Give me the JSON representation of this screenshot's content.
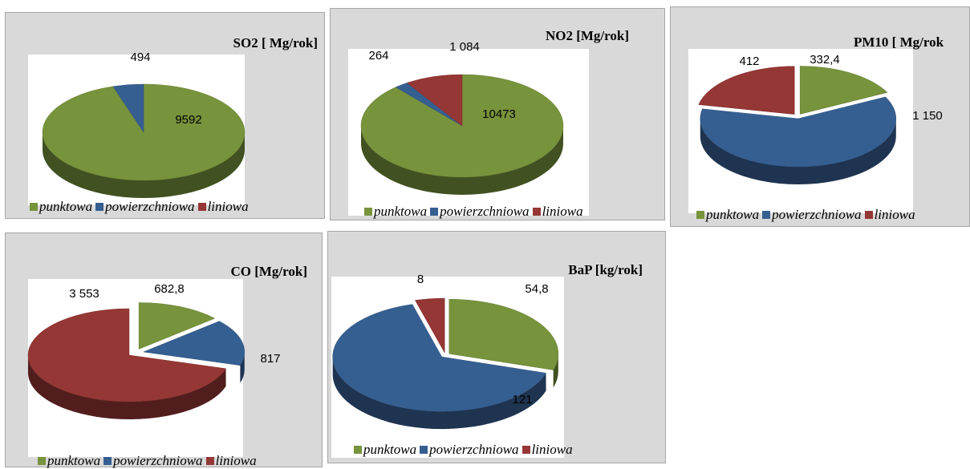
{
  "colors": {
    "punktowa": "#77933c",
    "powierzchniowa": "#365f91",
    "liniowa": "#953735"
  },
  "chart_data": [
    {
      "type": "pie",
      "title": "SO2 [ Mg/rok]",
      "categories": [
        "punktowa",
        "powierzchniowa",
        "liniowa"
      ],
      "values": [
        9592,
        494,
        0
      ],
      "labels": [
        "9592",
        "494",
        ""
      ]
    },
    {
      "type": "pie",
      "title": "NO2 [Mg/rok]",
      "categories": [
        "punktowa",
        "powierzchniowa",
        "liniowa"
      ],
      "values": [
        10473,
        264,
        1084
      ],
      "labels": [
        "10473",
        "264",
        "1 084"
      ]
    },
    {
      "type": "pie",
      "title": "PM10 [ Mg/rok",
      "categories": [
        "punktowa",
        "powierzchniowa",
        "liniowa"
      ],
      "values": [
        332.4,
        1150,
        412
      ],
      "labels": [
        "332,4",
        "1 150",
        "412"
      ]
    },
    {
      "type": "pie",
      "title": "CO [Mg/rok]",
      "categories": [
        "punktowa",
        "powierzchniowa",
        "liniowa"
      ],
      "values": [
        682.8,
        817,
        3553
      ],
      "labels": [
        "682,8",
        "817",
        "3 553"
      ]
    },
    {
      "type": "pie",
      "title": "BaP [kg/rok]",
      "categories": [
        "punktowa",
        "powierzchniowa",
        "liniowa"
      ],
      "values": [
        54.8,
        121,
        8
      ],
      "labels": [
        "54,8",
        "121",
        "8"
      ]
    }
  ],
  "legend": [
    "punktowa",
    "powierzchniowa",
    "liniowa"
  ]
}
